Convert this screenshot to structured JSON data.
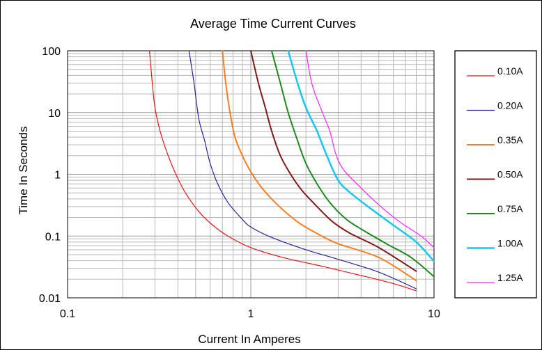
{
  "chart_data": {
    "type": "line",
    "title": "Average Time Current Curves",
    "xlabel": "Current In Amperes",
    "ylabel": "Time In Seconds",
    "x_scale": "log",
    "y_scale": "log",
    "xlim": [
      0.1,
      10
    ],
    "ylim": [
      0.01,
      100
    ],
    "x_ticks": [
      {
        "value": 0.1,
        "label": "0.1"
      },
      {
        "value": 1,
        "label": "1"
      },
      {
        "value": 10,
        "label": "10"
      }
    ],
    "y_ticks": [
      {
        "value": 0.01,
        "label": "0.01"
      },
      {
        "value": 0.1,
        "label": "0.1"
      },
      {
        "value": 1,
        "label": "1"
      },
      {
        "value": 10,
        "label": "10"
      },
      {
        "value": 100,
        "label": "100"
      }
    ],
    "grid": true,
    "legend_position": "right",
    "series": [
      {
        "name": "0.10A",
        "color": "#e8141b",
        "width": 1.2,
        "points": [
          [
            0.28,
            100
          ],
          [
            0.29,
            30
          ],
          [
            0.3,
            12
          ],
          [
            0.32,
            5
          ],
          [
            0.35,
            2.2
          ],
          [
            0.39,
            1
          ],
          [
            0.44,
            0.5
          ],
          [
            0.52,
            0.25
          ],
          [
            0.62,
            0.15
          ],
          [
            0.75,
            0.1
          ],
          [
            1,
            0.065
          ],
          [
            1.5,
            0.045
          ],
          [
            2.5,
            0.032
          ],
          [
            4,
            0.023
          ],
          [
            6,
            0.017
          ],
          [
            8,
            0.013
          ]
        ]
      },
      {
        "name": "0.20A",
        "color": "#24249c",
        "width": 1.2,
        "points": [
          [
            0.46,
            100
          ],
          [
            0.49,
            30
          ],
          [
            0.52,
            8
          ],
          [
            0.56,
            3.5
          ],
          [
            0.6,
            1.5
          ],
          [
            0.66,
            0.7
          ],
          [
            0.75,
            0.35
          ],
          [
            0.88,
            0.2
          ],
          [
            1,
            0.14
          ],
          [
            1.3,
            0.095
          ],
          [
            2,
            0.06
          ],
          [
            3,
            0.042
          ],
          [
            5,
            0.026
          ],
          [
            8,
            0.014
          ]
        ]
      },
      {
        "name": "0.35A",
        "color": "#ff7d1f",
        "width": 2,
        "points": [
          [
            0.7,
            100
          ],
          [
            0.73,
            30
          ],
          [
            0.77,
            10
          ],
          [
            0.82,
            4
          ],
          [
            0.9,
            2
          ],
          [
            1,
            1.1
          ],
          [
            1.15,
            0.6
          ],
          [
            1.4,
            0.32
          ],
          [
            1.8,
            0.17
          ],
          [
            2.3,
            0.11
          ],
          [
            3,
            0.075
          ],
          [
            5,
            0.045
          ],
          [
            8,
            0.019
          ]
        ]
      },
      {
        "name": "0.50A",
        "color": "#7d1a1a",
        "width": 2,
        "points": [
          [
            1,
            100
          ],
          [
            1.1,
            30
          ],
          [
            1.2,
            12
          ],
          [
            1.3,
            5
          ],
          [
            1.45,
            2
          ],
          [
            1.65,
            1
          ],
          [
            1.9,
            0.55
          ],
          [
            2.3,
            0.3
          ],
          [
            2.8,
            0.17
          ],
          [
            3.5,
            0.11
          ],
          [
            5,
            0.065
          ],
          [
            8,
            0.027
          ]
        ]
      },
      {
        "name": "0.75A",
        "color": "#1e8a1e",
        "width": 2,
        "points": [
          [
            1.3,
            100
          ],
          [
            1.45,
            30
          ],
          [
            1.6,
            10
          ],
          [
            1.8,
            3.5
          ],
          [
            2,
            1.5
          ],
          [
            2.3,
            0.7
          ],
          [
            2.7,
            0.35
          ],
          [
            3.3,
            0.19
          ],
          [
            4,
            0.13
          ],
          [
            5.5,
            0.075
          ],
          [
            7.5,
            0.045
          ],
          [
            10,
            0.022
          ]
        ]
      },
      {
        "name": "1.00A",
        "color": "#19c6ef",
        "width": 2.5,
        "points": [
          [
            1.6,
            100
          ],
          [
            1.8,
            30
          ],
          [
            2,
            12
          ],
          [
            2.3,
            5
          ],
          [
            2.6,
            2
          ],
          [
            3,
            0.8
          ],
          [
            3.5,
            0.5
          ],
          [
            4.5,
            0.28
          ],
          [
            6,
            0.15
          ],
          [
            8,
            0.08
          ],
          [
            10,
            0.039
          ]
        ]
      },
      {
        "name": "1.25A",
        "color": "#ff22ff",
        "width": 1.2,
        "points": [
          [
            2,
            100
          ],
          [
            2.15,
            30
          ],
          [
            2.4,
            12
          ],
          [
            2.7,
            5
          ],
          [
            2.9,
            2.2
          ],
          [
            3.2,
            1.2
          ],
          [
            4,
            0.6
          ],
          [
            5,
            0.32
          ],
          [
            6.5,
            0.17
          ],
          [
            8.5,
            0.1
          ],
          [
            10,
            0.065
          ]
        ]
      }
    ]
  }
}
